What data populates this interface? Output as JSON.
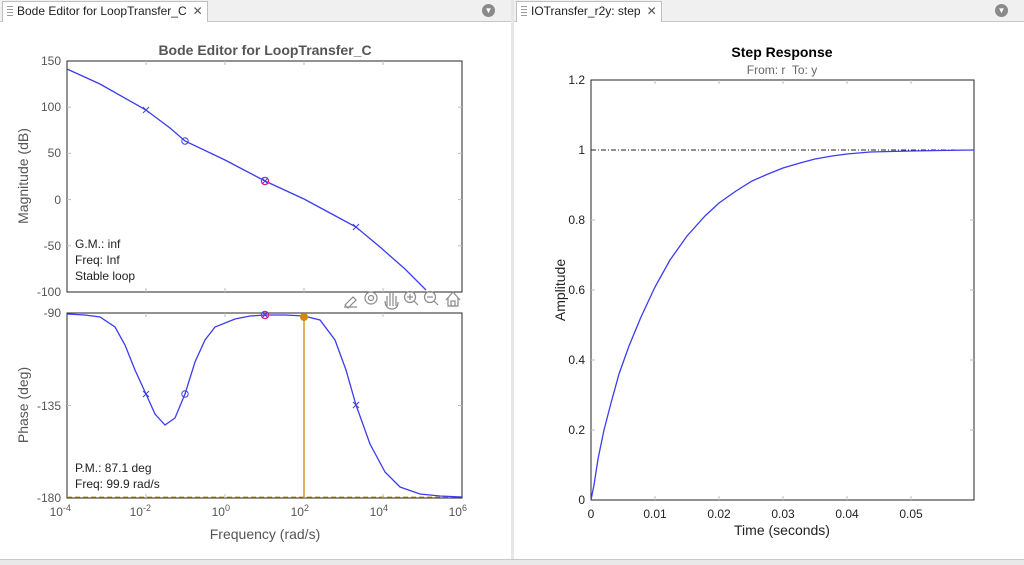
{
  "left_panel": {
    "tab_title": "Bode Editor for LoopTransfer_C",
    "plot_title": "Bode Editor for LoopTransfer_C",
    "mag_ylabel": "Magnitude (dB)",
    "phase_ylabel": "Phase (deg)",
    "xlabel": "Frequency (rad/s)",
    "mag_yticks": [
      "150",
      "100",
      "50",
      "0",
      "-50",
      "-100"
    ],
    "phase_yticks": [
      "-90",
      "-135",
      "-180"
    ],
    "xticks": [
      {
        "base": "10",
        "exp": "-4"
      },
      {
        "base": "10",
        "exp": "-2"
      },
      {
        "base": "10",
        "exp": "0"
      },
      {
        "base": "10",
        "exp": "2"
      },
      {
        "base": "10",
        "exp": "4"
      },
      {
        "base": "10",
        "exp": "6"
      }
    ],
    "mag_annotation": {
      "gm": "G.M.: inf",
      "freq": "Freq: Inf",
      "stability": "Stable loop"
    },
    "phase_annotation": {
      "pm": "P.M.: 87.1 deg",
      "freq": "Freq: 99.9 rad/s"
    }
  },
  "right_panel": {
    "tab_title": "IOTransfer_r2y: step",
    "plot_title": "Step Response",
    "subtitle": "From: r  To: y",
    "xlabel": "Time (seconds)",
    "ylabel": "Amplitude",
    "yticks": [
      "1.2",
      "1",
      "0.8",
      "0.6",
      "0.4",
      "0.2",
      "0"
    ],
    "xticks": [
      "0",
      "0.01",
      "0.02",
      "0.03",
      "0.04",
      "0.05"
    ]
  },
  "colors": {
    "curve": "#3c3cf0",
    "marker": "#4040e0",
    "pm_marker": "#d4880a",
    "highlight": "#e0206e"
  },
  "icons": [
    "brush-icon",
    "datatips-icon",
    "pan-hand-icon",
    "zoom-in-icon",
    "zoom-out-icon",
    "home-icon"
  ]
}
